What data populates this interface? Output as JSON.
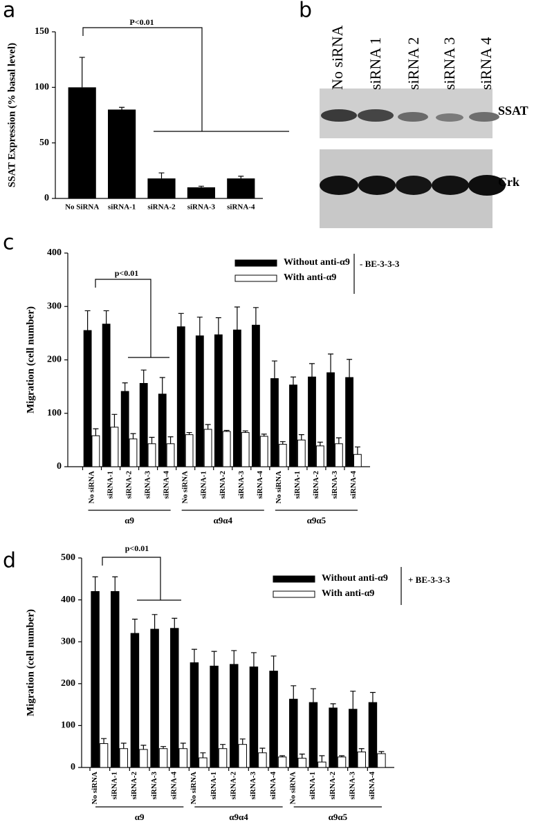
{
  "chart_data": [
    {
      "type": "bar",
      "panel_label": "a",
      "ylabel": "SSAT Expression (% basal level)",
      "annotation": "P<0.01",
      "categories": [
        "No SiRNA",
        "siRNA-1",
        "siRNA-2",
        "siRNA-3",
        "siRNA-4"
      ],
      "values": [
        100,
        80,
        18,
        10,
        18
      ],
      "errors": [
        27,
        2,
        5,
        1,
        2
      ],
      "color": "#000000",
      "ylim": [
        0,
        150
      ],
      "yticks": [
        0,
        50,
        100,
        150
      ]
    },
    {
      "type": "bar",
      "panel_label": "c",
      "ylabel": "Migration (cell number)",
      "annotation": "p<0.01",
      "legend_note": "- BE-3-3-3",
      "categories": [
        "No siRNA",
        "siRNA-1",
        "siRNA-2",
        "siRNA-3",
        "siRNA-4",
        "No siRNA",
        "siRNA-1",
        "siRNA-2",
        "siRNA-3",
        "siRNA-4",
        "No siRNA",
        "siRNA-1",
        "siRNA-2",
        "siRNA-3",
        "siRNA-4"
      ],
      "group_labels": [
        "α9",
        "α9α4",
        "α9α5"
      ],
      "series": [
        {
          "name": "Without anti-α9",
          "color": "#000000",
          "values": [
            255,
            267,
            141,
            156,
            136,
            262,
            245,
            247,
            256,
            265,
            165,
            153,
            168,
            176,
            167
          ],
          "errors": [
            37,
            25,
            16,
            25,
            31,
            25,
            35,
            32,
            43,
            33,
            33,
            15,
            25,
            35,
            34
          ]
        },
        {
          "name": "With anti-α9",
          "color": "#ffffff",
          "values": [
            58,
            74,
            52,
            43,
            43,
            60,
            70,
            66,
            64,
            57,
            42,
            50,
            39,
            43,
            23
          ],
          "errors": [
            13,
            24,
            10,
            12,
            13,
            4,
            9,
            2,
            3,
            4,
            5,
            10,
            7,
            11,
            14
          ]
        }
      ],
      "ylim": [
        0,
        400
      ],
      "yticks": [
        0,
        100,
        200,
        300,
        400
      ]
    },
    {
      "type": "bar",
      "panel_label": "d",
      "ylabel": "Migration (cell number)",
      "annotation": "p<0.01",
      "legend_note": "+ BE-3-3-3",
      "categories": [
        "No siRNA",
        "siRNA-1",
        "siRNA-2",
        "siRNA-3",
        "siRNA-4",
        "No siRNA",
        "siRNA-1",
        "siRNA-2",
        "siRNA-3",
        "siRNA-4",
        "No siRNA",
        "siRNA-1",
        "siRNA-2",
        "siRNA-3",
        "siRNA-4"
      ],
      "group_labels": [
        "α9",
        "α9α4",
        "α9α5"
      ],
      "series": [
        {
          "name": "Without anti-α9",
          "color": "#000000",
          "values": [
            420,
            420,
            320,
            330,
            332,
            250,
            242,
            246,
            240,
            230,
            163,
            155,
            142,
            139,
            155
          ],
          "errors": [
            35,
            35,
            34,
            35,
            24,
            32,
            35,
            33,
            34,
            36,
            32,
            33,
            10,
            43,
            24
          ]
        },
        {
          "name": "With anti-α9",
          "color": "#ffffff",
          "values": [
            57,
            45,
            43,
            45,
            45,
            23,
            45,
            55,
            35,
            25,
            22,
            13,
            25,
            37,
            33
          ],
          "errors": [
            12,
            13,
            10,
            5,
            13,
            12,
            10,
            13,
            11,
            3,
            10,
            15,
            3,
            8,
            5
          ]
        }
      ],
      "ylim": [
        0,
        500
      ],
      "yticks": [
        0,
        100,
        200,
        300,
        400,
        500
      ]
    }
  ],
  "blot": {
    "panel_label": "b",
    "lanes": [
      "No siRNA",
      "siRNA 1",
      "siRNA 2",
      "siRNA 3",
      "siRNA 4"
    ],
    "bands": [
      "SSAT",
      "Crk"
    ]
  }
}
